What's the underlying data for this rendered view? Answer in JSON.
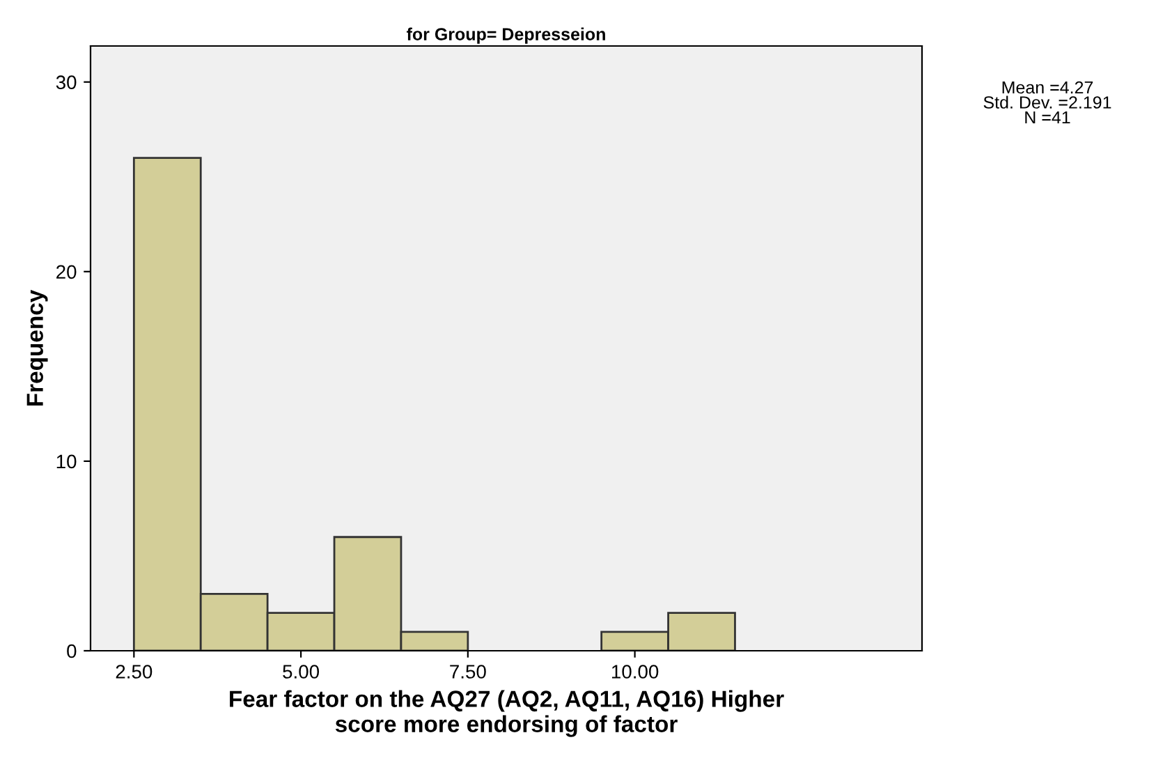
{
  "chart_data": {
    "type": "histogram",
    "title": "for Group= Depresseion",
    "xlabel": "Fear factor on the AQ27 (AQ2, AQ11, AQ16) Higher\nscore more endorsing of factor",
    "ylabel": "Frequency",
    "bins": [
      2.5,
      3.5,
      4.5,
      5.5,
      6.5,
      7.5,
      8.5,
      9.5,
      10.5,
      11.5
    ],
    "values": [
      26,
      3,
      2,
      6,
      1,
      0,
      0,
      1,
      2
    ],
    "color": "#d3ce98",
    "xlim": [
      1.85,
      14.3
    ],
    "xticks": [
      {
        "value": 2.5,
        "label": "2.50"
      },
      {
        "value": 5,
        "label": "5.00"
      },
      {
        "value": 7.5,
        "label": "7.50"
      },
      {
        "value": 10,
        "label": "10.00"
      }
    ],
    "ylim": [
      0,
      31.9
    ],
    "yticks": [
      0,
      10,
      20,
      30
    ],
    "grid": false,
    "annotations": [
      "Mean =4.27\nStd. Dev. =2.191\nN =41"
    ]
  }
}
